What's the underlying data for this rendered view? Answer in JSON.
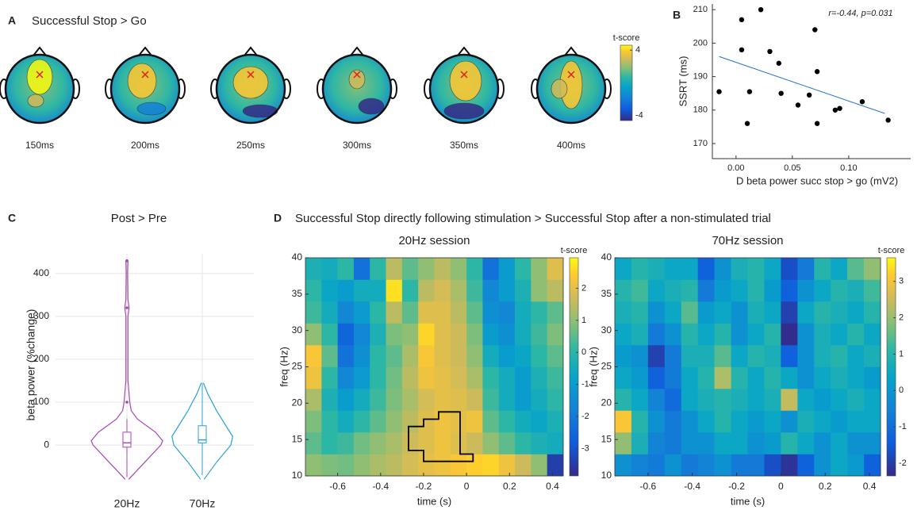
{
  "chart_data": [
    {
      "type": "topomap",
      "panel": "A",
      "title": "Successful Stop > Go",
      "maps": [
        "150ms",
        "200ms",
        "250ms",
        "300ms",
        "350ms",
        "400ms"
      ],
      "colorbar": {
        "title": "t-score",
        "lim": [
          -4.6,
          4.6
        ],
        "ticks": [
          4,
          -4
        ]
      }
    },
    {
      "type": "scatter",
      "panel": "B",
      "annotation": "r=-0.44, p=0.031",
      "xlabel": "D beta power succ stop > go (mV2)",
      "ylabel": "SSRT (ms)",
      "x": [
        -0.015,
        0.005,
        0.005,
        0.01,
        0.012,
        0.022,
        0.03,
        0.038,
        0.04,
        0.055,
        0.065,
        0.07,
        0.072,
        0.072,
        0.088,
        0.092,
        0.112,
        0.135
      ],
      "y": [
        185.5,
        207,
        198,
        176,
        185.5,
        210,
        197.5,
        194,
        185,
        181.5,
        184.5,
        204,
        191.5,
        176,
        180,
        180.5,
        182.5,
        177
      ],
      "color": "#000000",
      "fit": {
        "x": [
          -0.015,
          0.132
        ],
        "y": [
          196,
          179
        ],
        "color": "#1f6fd1"
      },
      "xlim": [
        -0.021,
        0.155
      ],
      "ylim": [
        165.5,
        211.7
      ],
      "xticks": [
        {
          "value": 0,
          "label": "0.00"
        },
        {
          "value": 0.05,
          "label": "0.05"
        },
        {
          "value": 0.1,
          "label": "0.10"
        }
      ],
      "yticks": [
        170,
        180,
        190,
        200,
        210
      ]
    },
    {
      "type": "violin",
      "panel": "C",
      "title": "Post > Pre",
      "ylabel": "beta power (%change)",
      "categories": [
        "20Hz",
        "70Hz"
      ],
      "ylim": [
        -72,
        446
      ],
      "yticks": [
        0,
        100,
        200,
        300,
        400
      ],
      "grid": true,
      "groups": [
        {
          "color": "#a347b0",
          "density": {
            "y": [
              -80,
              -40,
              0,
              10,
              30,
              60,
              80,
              100,
              150,
              200,
              300,
              320,
              340,
              400,
              430
            ],
            "d": [
              0.05,
              0.5,
              0.95,
              1,
              0.8,
              0.3,
              0.12,
              0.08,
              0.03,
              0.03,
              0.03,
              0.06,
              0.03,
              0.02,
              0.03
            ]
          },
          "box": {
            "whisker_low": -75,
            "q1": -5,
            "median": 5,
            "q3": 30,
            "whisker_high": 60
          },
          "outliers": [
            100,
            320,
            430
          ]
        },
        {
          "color": "#2c9fd9",
          "density": {
            "y": [
              -80,
              -40,
              0,
              20,
              40,
              80,
              120,
              145
            ],
            "d": [
              0.05,
              0.4,
              0.8,
              0.85,
              0.7,
              0.4,
              0.15,
              0.03
            ]
          },
          "box": {
            "whisker_low": -70,
            "q1": 5,
            "median": 12,
            "q3": 45,
            "whisker_high": 145
          },
          "outliers": []
        }
      ]
    },
    {
      "type": "heatmap",
      "panel": "D",
      "title": "Successful Stop directly following stimulation > Successful Stop after a non-stimulated trial",
      "subtitle": "20Hz session",
      "xlabel": "time (s)",
      "ylabel": "freq (Hz)",
      "xlim": [
        -0.75,
        0.45
      ],
      "ylim": [
        10,
        40
      ],
      "xticks": [
        -0.6,
        -0.4,
        -0.2,
        0,
        0.2,
        0.4
      ],
      "yticks": [
        10,
        15,
        20,
        25,
        30,
        35,
        40
      ],
      "time_edges": [
        -0.75,
        -0.675,
        -0.6,
        -0.525,
        -0.45,
        -0.375,
        -0.3,
        -0.225,
        -0.15,
        -0.075,
        0,
        0.075,
        0.15,
        0.225,
        0.3,
        0.375,
        0.45
      ],
      "freq_edges": [
        10,
        13,
        16,
        19,
        22,
        25,
        28,
        31,
        34,
        37,
        40
      ],
      "z": [
        [
          0.5,
          0.3,
          0.2,
          0.5,
          0.8,
          1,
          1.3,
          1.6,
          1.8,
          2,
          2.2,
          2.3,
          1.8,
          1.2,
          0.5,
          -3.5
        ],
        [
          0,
          -0.5,
          -0.3,
          0.2,
          0.5,
          0.8,
          1.2,
          1.5,
          1.8,
          1.5,
          1.2,
          0.5,
          0,
          -0.5,
          -0.8,
          -1
        ],
        [
          0.3,
          -0.5,
          -1,
          -0.5,
          0,
          0.5,
          1,
          1.5,
          1.8,
          1.6,
          1.8,
          0,
          -0.5,
          -1,
          -1.2,
          -0.8
        ],
        [
          0.8,
          -0.8,
          -1.5,
          -1,
          -0.3,
          0.3,
          0.8,
          1.3,
          1.6,
          1.5,
          1.2,
          -0.3,
          -1,
          -1.5,
          -1,
          -0.5
        ],
        [
          1.8,
          -0.5,
          -2,
          -1.5,
          -0.5,
          0.2,
          1,
          1.8,
          1.6,
          1.3,
          0.8,
          -0.5,
          -1,
          -1.5,
          -0.8,
          -0.3
        ],
        [
          2,
          0,
          -2.5,
          -1.8,
          -0.5,
          0,
          0.8,
          2,
          1.5,
          1.2,
          0.5,
          -1,
          -1.5,
          -1.2,
          -0.5,
          0
        ],
        [
          0.5,
          -0.5,
          -2.8,
          -2,
          -0.8,
          0.3,
          0.5,
          2.3,
          1.5,
          1.2,
          0.3,
          -1.5,
          -1.8,
          -1,
          -0.3,
          0.3
        ],
        [
          -0.3,
          -1,
          -2,
          -1.5,
          -0.5,
          1,
          0,
          1.5,
          1.5,
          1,
          0,
          -1.8,
          -2,
          -1,
          -0.5,
          0
        ],
        [
          -0.5,
          -1.2,
          -1.5,
          -1,
          -1,
          2.5,
          -0.5,
          1,
          1.3,
          0.8,
          -0.3,
          -2,
          -1.5,
          -0.8,
          0.5,
          1
        ],
        [
          -0.8,
          -1,
          -0.5,
          -2.5,
          -0.5,
          1,
          0,
          0.5,
          1,
          0.5,
          -0.5,
          -2.5,
          -1.5,
          -0.5,
          0.5,
          1.5
        ]
      ],
      "cluster": {
        "time": [
          -0.27,
          -0.2,
          -0.2,
          -0.13,
          -0.13,
          -0.03,
          -0.03,
          0.03,
          0.03,
          -0.2,
          -0.2,
          -0.27
        ],
        "freq": [
          16.8,
          16.8,
          17.8,
          17.8,
          18.8,
          18.8,
          13,
          13,
          12,
          12,
          13.5,
          13.5
        ]
      },
      "colorbar": {
        "title": "t-score",
        "lim": [
          -3.85,
          2.95
        ],
        "ticks": [
          2,
          1,
          0,
          -1,
          -2,
          -3
        ]
      }
    },
    {
      "type": "heatmap",
      "subtitle": "70Hz session",
      "xlabel": "time (s)",
      "ylabel": "freq (Hz)",
      "xlim": [
        -0.75,
        0.45
      ],
      "ylim": [
        10,
        40
      ],
      "xticks": [
        -0.6,
        -0.4,
        -0.2,
        0,
        0.2,
        0.4
      ],
      "yticks": [
        10,
        15,
        20,
        25,
        30,
        35,
        40
      ],
      "time_edges": [
        -0.75,
        -0.675,
        -0.6,
        -0.525,
        -0.45,
        -0.375,
        -0.3,
        -0.225,
        -0.15,
        -0.075,
        0,
        0.075,
        0.15,
        0.225,
        0.3,
        0.375,
        0.45
      ],
      "freq_edges": [
        10,
        13,
        16,
        19,
        22,
        25,
        28,
        31,
        34,
        37,
        40
      ],
      "z": [
        [
          -0.5,
          -0.8,
          -1,
          -0.5,
          -1,
          -0.8,
          -0.5,
          -1,
          -1,
          -1.8,
          -2.2,
          -1.5,
          -0.5,
          0,
          -0.3,
          -1.5
        ],
        [
          1.5,
          0.3,
          -0.8,
          -1,
          -0.5,
          -0.5,
          0,
          0,
          -0.5,
          -0.3,
          0.5,
          0,
          -0.5,
          0,
          -0.5,
          -0.5
        ],
        [
          2.8,
          0.5,
          -0.5,
          -1,
          -0.5,
          0,
          0.5,
          0,
          -0.3,
          0,
          -0.5,
          0.3,
          0,
          -0.3,
          0,
          0
        ],
        [
          0.5,
          0,
          -0.8,
          -1.3,
          0,
          0.3,
          0.5,
          0.3,
          0,
          0.3,
          2,
          0,
          -0.3,
          0,
          0.3,
          0
        ],
        [
          0,
          -0.3,
          -1.5,
          -1,
          0,
          0.5,
          1.8,
          0.5,
          0,
          0.5,
          0,
          -0.5,
          0,
          0.3,
          0,
          -0.3
        ],
        [
          -0.3,
          -0.5,
          -2,
          -1,
          0.3,
          0.3,
          1,
          0,
          0.5,
          0.3,
          -1.5,
          -0.5,
          0.3,
          0.5,
          0,
          0.3
        ],
        [
          0,
          0.3,
          -1,
          -0.5,
          0.5,
          0,
          0.5,
          -0.5,
          0,
          0.5,
          -2.3,
          -0.5,
          0.3,
          0,
          0.5,
          0
        ],
        [
          0.3,
          0.5,
          -0.5,
          0,
          1,
          -0.3,
          0,
          -0.5,
          0.3,
          0,
          -2,
          0,
          0.5,
          0.3,
          0,
          0.5
        ],
        [
          0.5,
          0.8,
          0,
          0.3,
          0.5,
          -1,
          -0.3,
          0,
          0.5,
          -0.3,
          -1.5,
          -0.5,
          0,
          0.5,
          0.3,
          0.8
        ],
        [
          0,
          0.5,
          0.3,
          0,
          0,
          -1.5,
          -0.5,
          0.3,
          0.5,
          0,
          -1.8,
          -1,
          0.5,
          0,
          1,
          1.5
        ]
      ],
      "colorbar": {
        "title": "t-score",
        "lim": [
          -2.35,
          3.65
        ],
        "ticks": [
          3,
          2,
          1,
          0,
          -1,
          -2
        ]
      }
    }
  ]
}
